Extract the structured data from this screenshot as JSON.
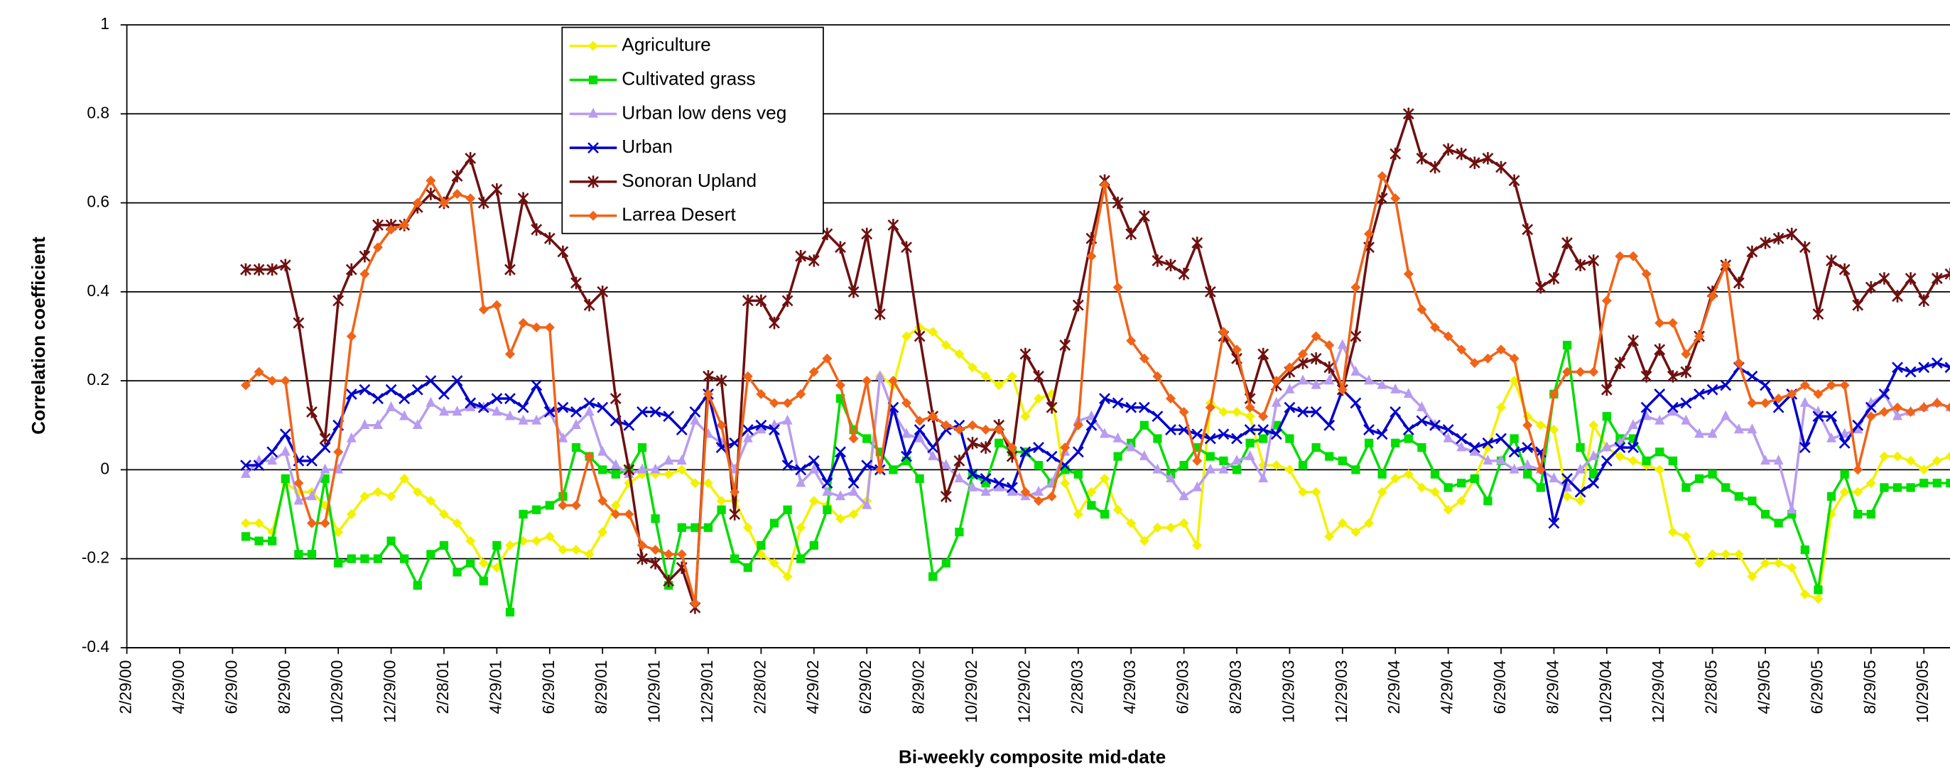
{
  "chart_data": {
    "type": "line",
    "y_label": "Correlation coefficient",
    "x_label": "Bi-weekly composite mid-date",
    "ylim": [
      -0.4,
      1
    ],
    "yticks": [
      -0.4,
      -0.2,
      0,
      0.2,
      0.4,
      0.6,
      0.8,
      1
    ],
    "grid": true,
    "legend": "upper-left",
    "categories": [
      "2/29/00",
      null,
      null,
      null,
      "4/29/00",
      null,
      null,
      null,
      "6/29/00",
      null,
      null,
      null,
      "8/29/00",
      null,
      null,
      null,
      "10/29/00",
      null,
      null,
      null,
      "12/29/00",
      null,
      null,
      null,
      "2/28/01",
      null,
      null,
      null,
      "4/29/01",
      null,
      null,
      null,
      "6/29/01",
      null,
      null,
      null,
      "8/29/01",
      null,
      null,
      null,
      "10/29/01",
      null,
      null,
      null,
      "12/29/01",
      null,
      null,
      null,
      "2/28/02",
      null,
      null,
      null,
      "4/29/02",
      null,
      null,
      null,
      "6/29/02",
      null,
      null,
      null,
      "8/29/02",
      null,
      null,
      null,
      "10/29/02",
      null,
      null,
      null,
      "12/29/02",
      null,
      null,
      null,
      "2/28/03",
      null,
      null,
      null,
      "4/29/03",
      null,
      null,
      null,
      "6/29/03",
      null,
      null,
      null,
      "8/29/03",
      null,
      null,
      null,
      "10/29/03",
      null,
      null,
      null,
      "12/29/03",
      null,
      null,
      null,
      "2/29/04",
      null,
      null,
      null,
      "4/29/04",
      null,
      null,
      null,
      "6/29/04",
      null,
      null,
      null,
      "8/29/04",
      null,
      null,
      null,
      "10/29/04",
      null,
      null,
      null,
      "12/29/04",
      null,
      null,
      null,
      "2/28/05",
      null,
      null,
      null,
      "4/29/05",
      null,
      null,
      null,
      "6/29/05",
      null,
      null,
      null,
      "8/29/05",
      null,
      null,
      null,
      "10/29/05",
      null,
      null
    ],
    "series": [
      {
        "name": "Agriculture",
        "color": "#f2f200",
        "marker": "diamond",
        "values": [
          null,
          null,
          null,
          null,
          null,
          null,
          null,
          null,
          null,
          -0.12,
          -0.12,
          -0.14,
          -0.03,
          -0.05,
          -0.05,
          -0.08,
          -0.14,
          -0.1,
          -0.06,
          -0.05,
          -0.06,
          -0.02,
          -0.05,
          -0.07,
          -0.1,
          -0.12,
          -0.16,
          -0.21,
          -0.22,
          -0.17,
          -0.16,
          -0.16,
          -0.15,
          -0.18,
          -0.18,
          -0.19,
          -0.14,
          -0.08,
          -0.03,
          -0.01,
          -0.01,
          -0.01,
          0.0,
          -0.03,
          -0.03,
          -0.07,
          -0.07,
          -0.13,
          -0.19,
          -0.21,
          -0.24,
          -0.13,
          -0.07,
          -0.08,
          -0.11,
          -0.1,
          -0.07,
          0.21,
          0.19,
          0.3,
          0.32,
          0.31,
          0.28,
          0.26,
          0.23,
          0.21,
          0.19,
          0.21,
          0.12,
          0.16,
          0.17,
          -0.03,
          -0.1,
          -0.05,
          -0.02,
          -0.09,
          -0.12,
          -0.16,
          -0.13,
          -0.13,
          -0.12,
          -0.17,
          0.15,
          0.13,
          0.13,
          0.12,
          0.01,
          0.01,
          0.0,
          -0.05,
          -0.05,
          -0.15,
          -0.12,
          -0.14,
          -0.12,
          -0.05,
          -0.02,
          -0.01,
          -0.04,
          -0.05,
          -0.09,
          -0.07,
          -0.02,
          0.05,
          0.14,
          0.2,
          0.12,
          0.1,
          0.09,
          -0.06,
          -0.07,
          0.1,
          0.05,
          0.03,
          0.02,
          0.01,
          0.0,
          -0.14,
          -0.15,
          -0.21,
          -0.19,
          -0.19,
          -0.19,
          -0.24,
          -0.21,
          -0.21,
          -0.22,
          -0.28,
          -0.29,
          -0.1,
          -0.05,
          -0.05,
          -0.03,
          0.03,
          0.03,
          0.02,
          0.0,
          0.02,
          0.03
        ]
      },
      {
        "name": "Cultivated grass",
        "color": "#00dd00",
        "marker": "square",
        "values": [
          null,
          null,
          null,
          null,
          null,
          null,
          null,
          null,
          null,
          -0.15,
          -0.16,
          -0.16,
          -0.02,
          -0.19,
          -0.19,
          -0.02,
          -0.21,
          -0.2,
          -0.2,
          -0.2,
          -0.16,
          -0.2,
          -0.26,
          -0.19,
          -0.17,
          -0.23,
          -0.21,
          -0.25,
          -0.17,
          -0.32,
          -0.1,
          -0.09,
          -0.08,
          -0.06,
          0.05,
          0.03,
          0.0,
          -0.01,
          0.0,
          0.05,
          -0.11,
          -0.26,
          -0.13,
          -0.13,
          -0.13,
          -0.09,
          -0.2,
          -0.22,
          -0.17,
          -0.12,
          -0.09,
          -0.2,
          -0.17,
          -0.09,
          0.16,
          0.09,
          0.07,
          0.04,
          0.0,
          0.02,
          -0.02,
          -0.24,
          -0.21,
          -0.14,
          -0.01,
          -0.03,
          0.06,
          0.04,
          0.04,
          0.01,
          -0.03,
          0.0,
          -0.01,
          -0.08,
          -0.1,
          0.03,
          0.06,
          0.1,
          0.07,
          -0.01,
          0.01,
          0.05,
          0.03,
          0.02,
          0.0,
          0.06,
          0.07,
          0.1,
          0.07,
          0.01,
          0.05,
          0.03,
          0.02,
          0.0,
          0.06,
          -0.01,
          0.06,
          0.07,
          0.05,
          -0.01,
          -0.04,
          -0.03,
          -0.02,
          -0.07,
          0.02,
          0.07,
          -0.01,
          -0.04,
          0.17,
          0.28,
          0.05,
          -0.01,
          0.12,
          0.07,
          0.07,
          0.02,
          0.04,
          0.02,
          -0.04,
          -0.02,
          -0.01,
          -0.04,
          -0.06,
          -0.07,
          -0.1,
          -0.12,
          -0.1,
          -0.18,
          -0.27,
          -0.06,
          -0.01,
          -0.1,
          -0.1,
          -0.04,
          -0.04,
          -0.04,
          -0.03,
          -0.03,
          -0.03
        ]
      },
      {
        "name": "Urban low dens veg",
        "color": "#b89cf0",
        "marker": "triangle",
        "values": [
          null,
          null,
          null,
          null,
          null,
          null,
          null,
          null,
          null,
          -0.01,
          0.02,
          0.02,
          0.04,
          -0.07,
          -0.06,
          0.0,
          0.0,
          0.07,
          0.1,
          0.1,
          0.14,
          0.12,
          0.1,
          0.15,
          0.13,
          0.13,
          0.14,
          0.14,
          0.13,
          0.12,
          0.11,
          0.11,
          0.13,
          0.07,
          0.1,
          0.13,
          0.04,
          0.01,
          -0.01,
          0.0,
          0.0,
          0.02,
          0.02,
          0.11,
          0.08,
          0.06,
          0.0,
          0.07,
          0.09,
          0.1,
          0.11,
          -0.03,
          0.0,
          -0.05,
          -0.06,
          -0.05,
          -0.08,
          0.21,
          0.13,
          0.08,
          0.07,
          0.03,
          0.01,
          -0.02,
          -0.04,
          -0.05,
          -0.04,
          -0.05,
          -0.06,
          -0.05,
          -0.03,
          0.04,
          0.11,
          0.12,
          0.08,
          0.07,
          0.05,
          0.03,
          0.0,
          -0.02,
          -0.06,
          -0.04,
          0.0,
          0.0,
          0.02,
          0.03,
          -0.02,
          0.15,
          0.18,
          0.2,
          0.19,
          0.2,
          0.28,
          0.22,
          0.2,
          0.19,
          0.18,
          0.17,
          0.14,
          0.1,
          0.07,
          0.05,
          0.04,
          0.02,
          0.02,
          0.0,
          0.01,
          0.0,
          -0.02,
          -0.04,
          0.0,
          0.03,
          0.05,
          0.06,
          0.1,
          0.12,
          0.11,
          0.13,
          0.11,
          0.08,
          0.08,
          0.12,
          0.09,
          0.09,
          0.02,
          0.02,
          -0.09,
          0.15,
          0.13,
          0.07,
          0.08,
          0.09,
          0.15,
          0.17,
          0.12,
          0.13,
          0.14,
          0.15,
          0.14
        ]
      },
      {
        "name": "Urban",
        "color": "#0000cc",
        "marker": "x",
        "values": [
          null,
          null,
          null,
          null,
          null,
          null,
          null,
          null,
          null,
          0.01,
          0.01,
          0.04,
          0.08,
          0.02,
          0.02,
          0.05,
          0.1,
          0.17,
          0.18,
          0.16,
          0.18,
          0.16,
          0.18,
          0.2,
          0.17,
          0.2,
          0.15,
          0.14,
          0.16,
          0.16,
          0.14,
          0.19,
          0.13,
          0.14,
          0.13,
          0.15,
          0.14,
          0.11,
          0.1,
          0.13,
          0.13,
          0.12,
          0.09,
          0.13,
          0.17,
          0.05,
          0.06,
          0.09,
          0.1,
          0.09,
          0.01,
          0.0,
          0.02,
          -0.03,
          0.04,
          -0.03,
          0.01,
          0.0,
          0.14,
          0.03,
          0.09,
          0.05,
          0.09,
          0.1,
          -0.01,
          -0.02,
          -0.03,
          -0.04,
          0.04,
          0.05,
          0.03,
          0.01,
          0.04,
          0.1,
          0.16,
          0.15,
          0.14,
          0.14,
          0.12,
          0.09,
          0.09,
          0.08,
          0.07,
          0.08,
          0.07,
          0.09,
          0.09,
          0.08,
          0.14,
          0.13,
          0.13,
          0.1,
          0.18,
          0.15,
          0.09,
          0.08,
          0.13,
          0.09,
          0.11,
          0.1,
          0.09,
          0.07,
          0.05,
          0.06,
          0.07,
          0.04,
          0.05,
          0.04,
          -0.12,
          -0.02,
          -0.05,
          -0.03,
          0.02,
          0.05,
          0.05,
          0.14,
          0.17,
          0.14,
          0.15,
          0.17,
          0.18,
          0.19,
          0.23,
          0.21,
          0.19,
          0.14,
          0.17,
          0.05,
          0.12,
          0.12,
          0.06,
          0.1,
          0.14,
          0.17,
          0.23,
          0.22,
          0.23,
          0.24,
          0.23
        ]
      },
      {
        "name": "Sonoran Upland",
        "color": "#6e1010",
        "marker": "asterisk",
        "values": [
          null,
          null,
          null,
          null,
          null,
          null,
          null,
          null,
          null,
          0.45,
          0.45,
          0.45,
          0.46,
          0.33,
          0.13,
          0.07,
          0.38,
          0.45,
          0.48,
          0.55,
          0.55,
          0.55,
          0.59,
          0.62,
          0.6,
          0.66,
          0.7,
          0.6,
          0.63,
          0.45,
          0.61,
          0.54,
          0.52,
          0.49,
          0.42,
          0.37,
          0.4,
          0.16,
          0.0,
          -0.2,
          -0.21,
          -0.25,
          -0.22,
          -0.31,
          0.21,
          0.2,
          -0.1,
          0.38,
          0.38,
          0.33,
          0.38,
          0.48,
          0.47,
          0.53,
          0.5,
          0.4,
          0.53,
          0.35,
          0.55,
          0.5,
          0.3,
          0.12,
          -0.06,
          0.02,
          0.06,
          0.05,
          0.1,
          0.03,
          0.26,
          0.21,
          0.14,
          0.28,
          0.37,
          0.52,
          0.65,
          0.6,
          0.53,
          0.57,
          0.47,
          0.46,
          0.44,
          0.51,
          0.4,
          0.3,
          0.25,
          0.16,
          0.26,
          0.19,
          0.22,
          0.24,
          0.25,
          0.23,
          0.18,
          0.3,
          0.5,
          0.61,
          0.71,
          0.8,
          0.7,
          0.68,
          0.72,
          0.71,
          0.69,
          0.7,
          0.68,
          0.65,
          0.54,
          0.41,
          0.43,
          0.51,
          0.46,
          0.47,
          0.18,
          0.24,
          0.29,
          0.21,
          0.27,
          0.21,
          0.22,
          0.3,
          0.4,
          0.46,
          0.42,
          0.49,
          0.51,
          0.52,
          0.53,
          0.5,
          0.35,
          0.47,
          0.45,
          0.37,
          0.41,
          0.43,
          0.39,
          0.43,
          0.38,
          0.43,
          0.44
        ]
      },
      {
        "name": "Larrea Desert",
        "color": "#f06418",
        "marker": "diamond",
        "values": [
          null,
          null,
          null,
          null,
          null,
          null,
          null,
          null,
          null,
          0.19,
          0.22,
          0.2,
          0.2,
          -0.03,
          -0.12,
          -0.12,
          0.04,
          0.3,
          0.44,
          0.5,
          0.54,
          0.55,
          0.6,
          0.65,
          0.6,
          0.62,
          0.61,
          0.36,
          0.37,
          0.26,
          0.33,
          0.32,
          0.32,
          -0.08,
          -0.08,
          0.03,
          -0.07,
          -0.1,
          -0.1,
          -0.17,
          -0.18,
          -0.19,
          -0.19,
          -0.3,
          0.17,
          0.1,
          -0.05,
          0.21,
          0.17,
          0.15,
          0.15,
          0.17,
          0.22,
          0.25,
          0.19,
          0.07,
          0.2,
          0.0,
          0.2,
          0.15,
          0.11,
          0.12,
          0.1,
          0.09,
          0.1,
          0.09,
          0.09,
          0.05,
          -0.05,
          -0.07,
          -0.06,
          0.05,
          0.1,
          0.48,
          0.64,
          0.41,
          0.29,
          0.25,
          0.21,
          0.16,
          0.13,
          0.02,
          0.14,
          0.31,
          0.27,
          0.14,
          0.12,
          0.2,
          0.23,
          0.26,
          0.3,
          0.28,
          0.18,
          0.41,
          0.53,
          0.66,
          0.61,
          0.44,
          0.36,
          0.32,
          0.3,
          0.27,
          0.24,
          0.25,
          0.27,
          0.25,
          0.1,
          0.0,
          0.17,
          0.22,
          0.22,
          0.22,
          0.38,
          0.48,
          0.48,
          0.44,
          0.33,
          0.33,
          0.26,
          0.3,
          0.39,
          0.46,
          0.24,
          0.15,
          0.15,
          0.16,
          0.17,
          0.19,
          0.17,
          0.19,
          0.19,
          0.0,
          0.12,
          0.13,
          0.14,
          0.13,
          0.14,
          0.15,
          0.14
        ]
      }
    ]
  }
}
